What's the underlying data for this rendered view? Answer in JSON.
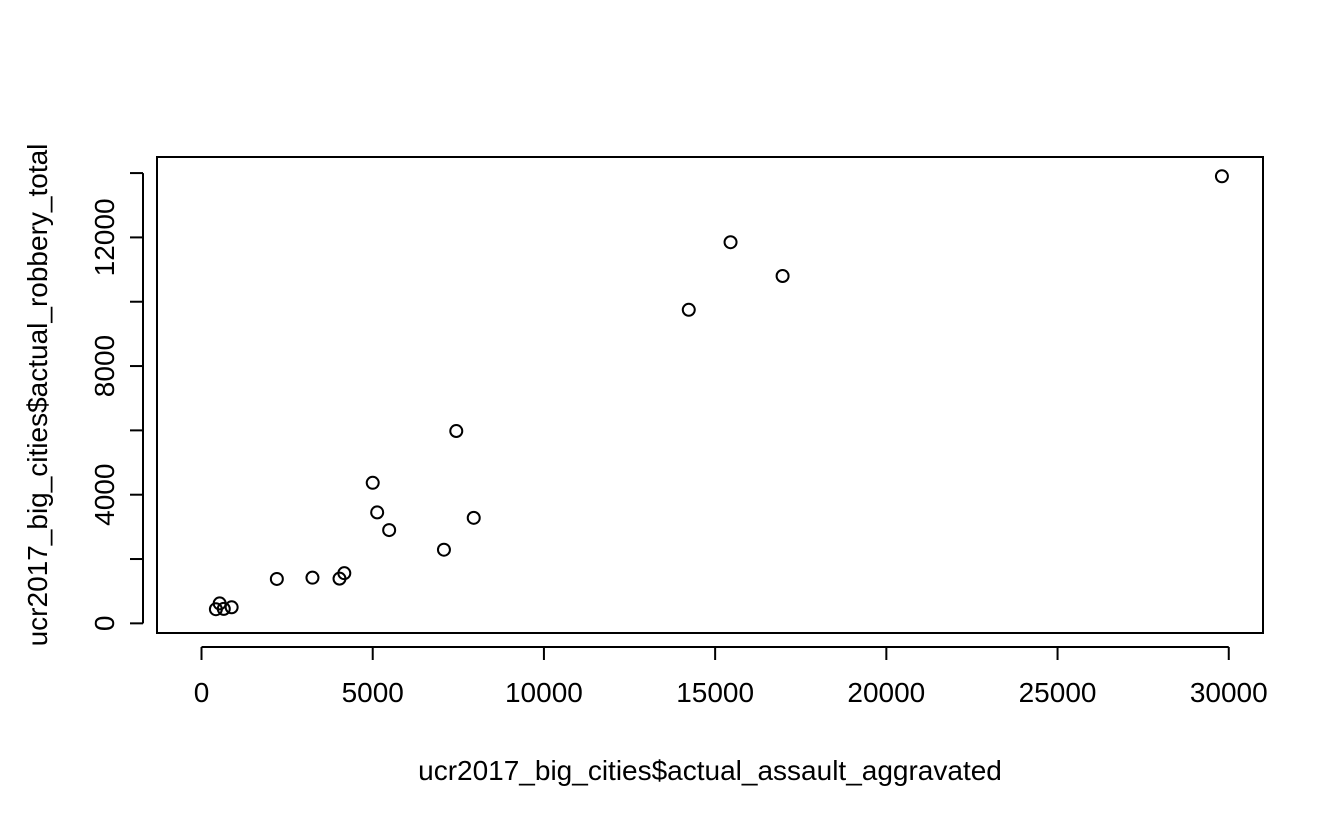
{
  "chart_data": {
    "type": "scatter",
    "title": "",
    "xlabel": "ucr2017_big_cities$actual_assault_aggravated",
    "ylabel": "ucr2017_big_cities$actual_robbery_total",
    "xlim": [
      -1300,
      31000
    ],
    "ylim": [
      -300,
      14500
    ],
    "x_ticks": [
      0,
      5000,
      10000,
      15000,
      20000,
      25000,
      30000
    ],
    "y_ticks": [
      0,
      4000,
      8000,
      12000
    ],
    "y_minor_ticks": [
      2000,
      6000,
      10000,
      14000
    ],
    "grid": false,
    "legend": "none",
    "marker": "open-circle",
    "points": [
      {
        "x": 29800,
        "y": 13900
      },
      {
        "x": 15450,
        "y": 11850
      },
      {
        "x": 16970,
        "y": 10800
      },
      {
        "x": 14230,
        "y": 9750
      },
      {
        "x": 7440,
        "y": 5980
      },
      {
        "x": 5000,
        "y": 4370
      },
      {
        "x": 5130,
        "y": 3450
      },
      {
        "x": 7950,
        "y": 3280
      },
      {
        "x": 5480,
        "y": 2900
      },
      {
        "x": 7080,
        "y": 2290
      },
      {
        "x": 4170,
        "y": 1560
      },
      {
        "x": 4030,
        "y": 1390
      },
      {
        "x": 3240,
        "y": 1420
      },
      {
        "x": 2200,
        "y": 1380
      },
      {
        "x": 530,
        "y": 620
      },
      {
        "x": 420,
        "y": 440
      },
      {
        "x": 650,
        "y": 450
      },
      {
        "x": 880,
        "y": 500
      }
    ]
  }
}
